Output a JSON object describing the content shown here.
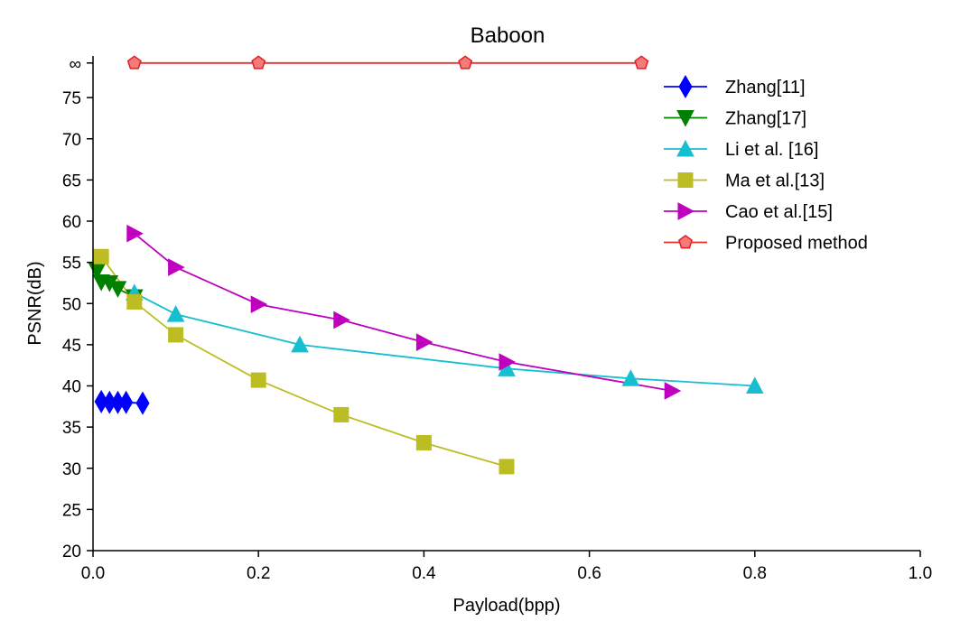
{
  "chart_data": {
    "type": "line",
    "title": "Baboon",
    "xlabel": "Payload(bpp)",
    "ylabel": "PSNR(dB)",
    "xlim": [
      0,
      1.0
    ],
    "ylim": [
      20,
      80
    ],
    "xticks": [
      "0.0",
      "0.2",
      "0.4",
      "0.6",
      "0.8",
      "1.0"
    ],
    "yticks": [
      "20",
      "25",
      "30",
      "35",
      "40",
      "45",
      "50",
      "55",
      "60",
      "65",
      "70",
      "75",
      "∞"
    ],
    "infinity_value": 79.2,
    "grid": false,
    "legend_position": "top-right",
    "series": [
      {
        "name": "Zhang[11]",
        "color": "#0000ff",
        "marker": "diamond",
        "x": [
          0.01,
          0.02,
          0.03,
          0.04,
          0.06
        ],
        "y": [
          38.1,
          38.0,
          38.0,
          38.0,
          37.9
        ]
      },
      {
        "name": "Zhang[17]",
        "color": "#008000",
        "marker": "triangle-down",
        "x": [
          0.005,
          0.01,
          0.02,
          0.03,
          0.05
        ],
        "y": [
          54.0,
          52.6,
          52.5,
          51.8,
          50.8
        ]
      },
      {
        "name": "Li et al. [16]",
        "color": "#17becf",
        "marker": "triangle-up",
        "x": [
          0.05,
          0.1,
          0.25,
          0.5,
          0.65,
          0.8
        ],
        "y": [
          51.3,
          48.7,
          45.0,
          42.1,
          40.9,
          40.0
        ]
      },
      {
        "name": "Ma et al.[13]",
        "color": "#bcbd22",
        "marker": "square",
        "x": [
          0.01,
          0.05,
          0.1,
          0.2,
          0.3,
          0.4,
          0.5
        ],
        "y": [
          55.7,
          50.2,
          46.2,
          40.7,
          36.5,
          33.1,
          30.2
        ]
      },
      {
        "name": "Cao et al.[15]",
        "color": "#bf00bf",
        "marker": "triangle-right",
        "x": [
          0.05,
          0.1,
          0.2,
          0.3,
          0.4,
          0.5,
          0.7
        ],
        "y": [
          58.5,
          54.4,
          49.9,
          48.0,
          45.3,
          42.9,
          39.4
        ]
      },
      {
        "name": "Proposed method",
        "color": "#e83030",
        "marker": "pentagon",
        "x": [
          0.05,
          0.2,
          0.45,
          0.663
        ],
        "y": [
          "∞",
          "∞",
          "∞",
          "∞"
        ]
      }
    ]
  }
}
